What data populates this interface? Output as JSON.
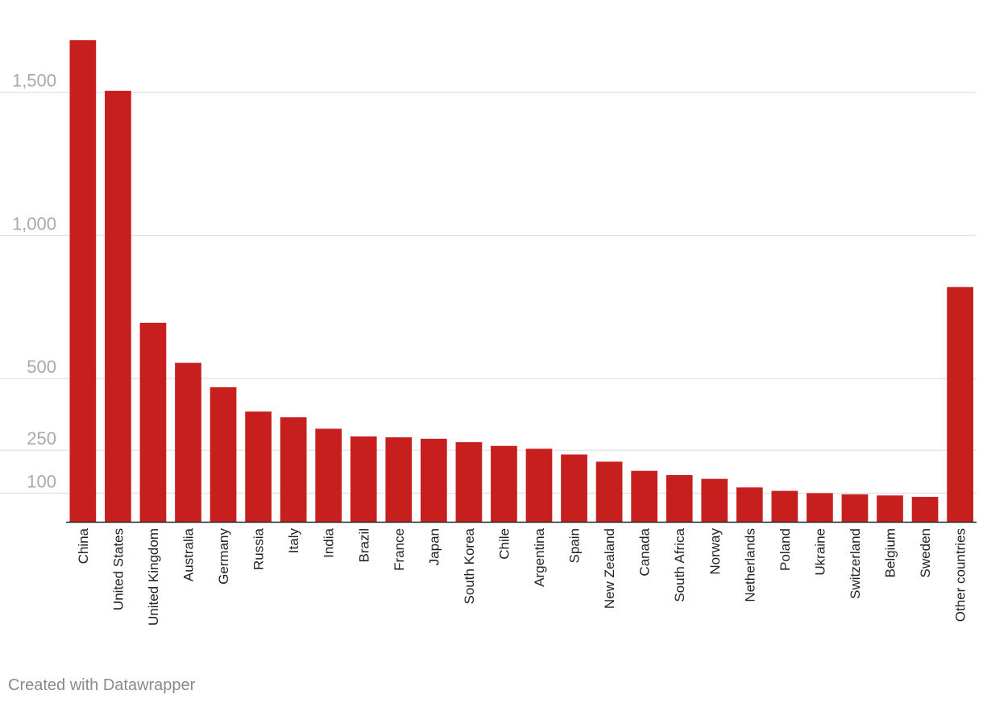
{
  "credit": "Created with Datawrapper",
  "colors": {
    "bar": "#c71e1e",
    "grid": "#e3e3e3",
    "tick_text": "#a9a9a9",
    "baseline": "#222222"
  },
  "chart_data": {
    "type": "bar",
    "title": "",
    "xlabel": "",
    "ylabel": "",
    "ylim": [
      0,
      1680
    ],
    "yticks": [
      {
        "value": 100,
        "label": "100"
      },
      {
        "value": 250,
        "label": "250"
      },
      {
        "value": 500,
        "label": "500"
      },
      {
        "value": 1000,
        "label": "1,000"
      },
      {
        "value": 1500,
        "label": "1,500"
      }
    ],
    "grid": true,
    "categories": [
      "China",
      "United States",
      "United Kingdom",
      "Australia",
      "Germany",
      "Russia",
      "Italy",
      "India",
      "Brazil",
      "France",
      "Japan",
      "South Korea",
      "Chile",
      "Argentina",
      "Spain",
      "New Zealand",
      "Canada",
      "South Africa",
      "Norway",
      "Netherlands",
      "Poland",
      "Ukraine",
      "Switzerland",
      "Belgium",
      "Sweden",
      "Other countries"
    ],
    "values": [
      1682,
      1505,
      695,
      555,
      470,
      385,
      365,
      325,
      298,
      295,
      290,
      278,
      265,
      255,
      235,
      210,
      178,
      163,
      150,
      120,
      108,
      100,
      96,
      92,
      87,
      820
    ]
  }
}
